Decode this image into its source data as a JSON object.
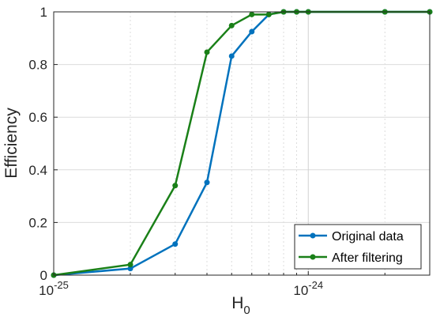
{
  "chart_data": {
    "type": "line",
    "xscale": "log",
    "xlim": [
      1e-25,
      3e-24
    ],
    "ylim": [
      0,
      1
    ],
    "grid": "on (major and minor x)",
    "legend_location": "bottom-right",
    "xlabel": {
      "base": "H",
      "sub": "0"
    },
    "ylabel": "Efficiency",
    "x_ticks": [
      {
        "value": 1e-25,
        "base": "10",
        "exp": "-25"
      },
      {
        "value": 1e-24,
        "base": "10",
        "exp": "-24"
      }
    ],
    "y_ticks": [
      {
        "value": 0,
        "label": "0"
      },
      {
        "value": 0.2,
        "label": "0.2"
      },
      {
        "value": 0.4,
        "label": "0.4"
      },
      {
        "value": 0.6,
        "label": "0.6"
      },
      {
        "value": 0.8,
        "label": "0.8"
      },
      {
        "value": 1,
        "label": "1"
      }
    ],
    "series": [
      {
        "name": "Original data",
        "color": "#0072BD",
        "x": [
          1e-25,
          2e-25,
          3e-25,
          4e-25,
          5e-25,
          6e-25,
          7e-25,
          8e-25,
          9e-25,
          1e-24,
          2e-24,
          3e-24
        ],
        "y": [
          0.0,
          0.025,
          0.118,
          0.352,
          0.832,
          0.925,
          0.99,
          1.0,
          1.0,
          1.0,
          1.0,
          1.0
        ]
      },
      {
        "name": "After filtering",
        "color": "#1A8018",
        "x": [
          1e-25,
          2e-25,
          3e-25,
          4e-25,
          5e-25,
          6e-25,
          7e-25,
          8e-25,
          9e-25,
          1e-24,
          2e-24,
          3e-24
        ],
        "y": [
          0.0,
          0.04,
          0.34,
          0.847,
          0.948,
          0.99,
          0.99,
          1.0,
          1.0,
          1.0,
          1.0,
          1.0
        ]
      }
    ]
  }
}
